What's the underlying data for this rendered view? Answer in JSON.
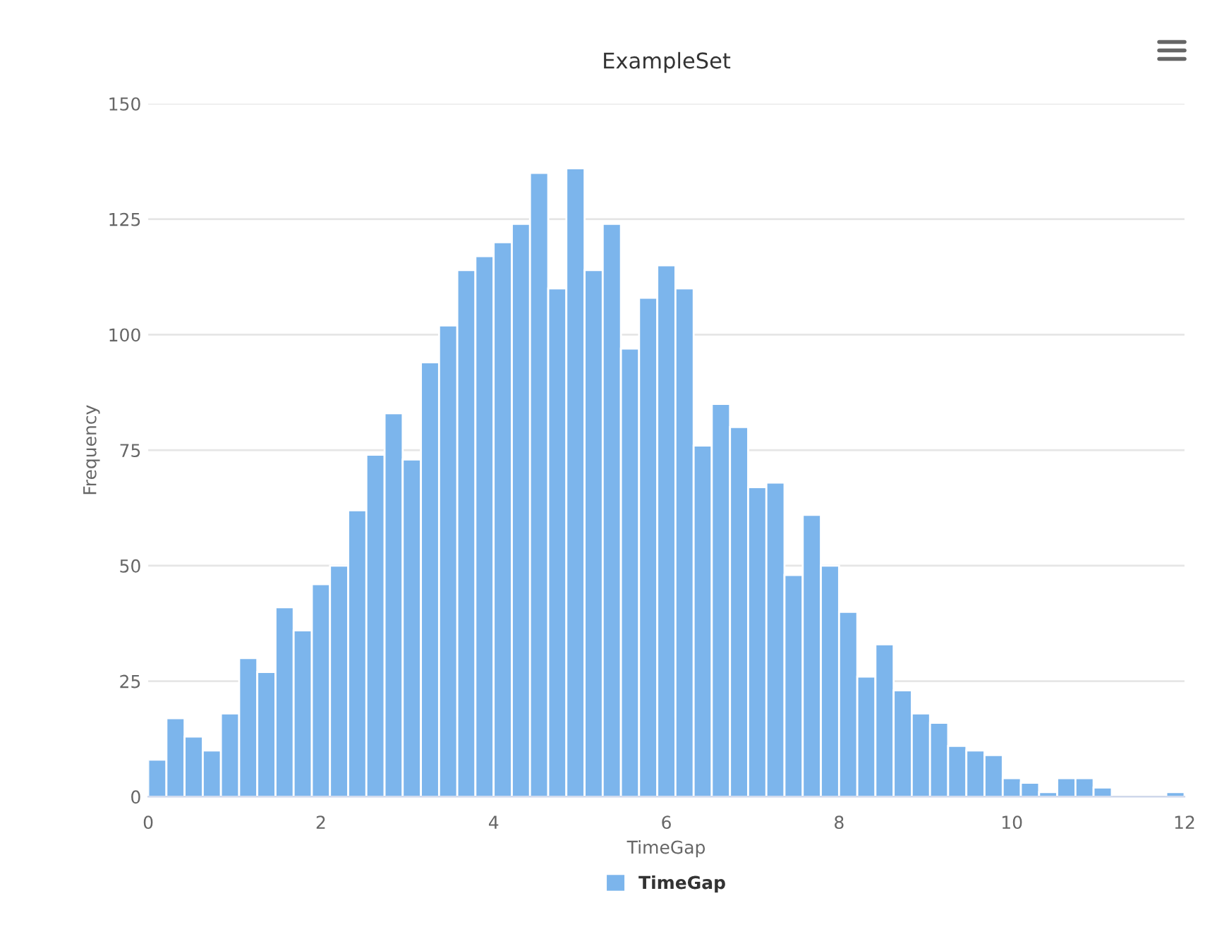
{
  "chart_data": {
    "type": "histogram",
    "title": "ExampleSet",
    "xlabel": "TimeGap",
    "ylabel": "Frequency",
    "bins": [
      0,
      0.211,
      0.421,
      0.632,
      0.842,
      1.053,
      1.263,
      1.474,
      1.684,
      1.895,
      2.105,
      2.316,
      2.526,
      2.737,
      2.947,
      3.158,
      3.368,
      3.579,
      3.789,
      4.0,
      4.211,
      4.421,
      4.632,
      4.842,
      5.053,
      5.263,
      5.474,
      5.684,
      5.895,
      6.105,
      6.316,
      6.526,
      6.737,
      6.947,
      7.158,
      7.368,
      7.579,
      7.789,
      8.0,
      8.211,
      8.421,
      8.632,
      8.842,
      9.053,
      9.263,
      9.474,
      9.684,
      9.895,
      10.105,
      10.316,
      10.526,
      10.737,
      10.947,
      11.158,
      11.368,
      11.579,
      11.789,
      12.0
    ],
    "series": [
      {
        "name": "TimeGap",
        "color": "#7cb5ec",
        "values": [
          8,
          17,
          13,
          10,
          18,
          30,
          27,
          41,
          36,
          46,
          50,
          62,
          74,
          83,
          73,
          94,
          102,
          114,
          117,
          120,
          124,
          135,
          110,
          136,
          114,
          124,
          97,
          108,
          115,
          110,
          76,
          85,
          80,
          67,
          68,
          48,
          61,
          50,
          40,
          26,
          33,
          23,
          18,
          16,
          11,
          10,
          9,
          4,
          3,
          1,
          4,
          4,
          2,
          0,
          0,
          0,
          1
        ]
      }
    ],
    "xlim": [
      0,
      12
    ],
    "xticks": [
      0,
      2,
      4,
      6,
      8,
      10,
      12
    ],
    "ylim": [
      0,
      150
    ],
    "yticks": [
      0,
      25,
      50,
      75,
      100,
      125,
      150
    ],
    "grid": "y",
    "legend": "bottom"
  }
}
